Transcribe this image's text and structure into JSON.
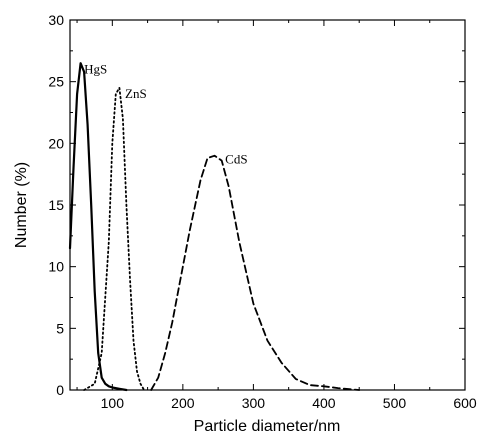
{
  "chart_data": {
    "type": "line",
    "title": "",
    "xlabel": "Particle diameter/nm",
    "ylabel": "Number (%)",
    "xlim": [
      40,
      600
    ],
    "ylim": [
      0,
      30
    ],
    "xticks": [
      100,
      200,
      300,
      400,
      500,
      600
    ],
    "yticks": [
      0,
      5,
      10,
      15,
      20,
      25,
      30
    ],
    "grid": false,
    "legend": "none",
    "series": [
      {
        "name": "HgS",
        "style": "solid",
        "points": [
          [
            40,
            11.5
          ],
          [
            45,
            18
          ],
          [
            50,
            24
          ],
          [
            55,
            26.5
          ],
          [
            60,
            25.8
          ],
          [
            65,
            21.5
          ],
          [
            70,
            15
          ],
          [
            75,
            8
          ],
          [
            80,
            3
          ],
          [
            85,
            1
          ],
          [
            90,
            0.5
          ],
          [
            95,
            0.3
          ],
          [
            100,
            0.2
          ],
          [
            110,
            0.1
          ],
          [
            120,
            0
          ]
        ]
      },
      {
        "name": "ZnS",
        "style": "dotted",
        "points": [
          [
            60,
            0
          ],
          [
            75,
            0.5
          ],
          [
            85,
            3
          ],
          [
            95,
            12
          ],
          [
            100,
            20
          ],
          [
            105,
            24
          ],
          [
            110,
            24.5
          ],
          [
            115,
            22
          ],
          [
            120,
            15
          ],
          [
            125,
            9
          ],
          [
            130,
            4
          ],
          [
            135,
            1.5
          ],
          [
            140,
            0.5
          ],
          [
            145,
            0
          ]
        ]
      },
      {
        "name": "CdS",
        "style": "dashed",
        "points": [
          [
            155,
            0
          ],
          [
            165,
            1
          ],
          [
            175,
            3
          ],
          [
            185,
            5.5
          ],
          [
            195,
            8.5
          ],
          [
            210,
            13
          ],
          [
            225,
            17
          ],
          [
            235,
            18.8
          ],
          [
            245,
            19
          ],
          [
            255,
            18.6
          ],
          [
            265,
            16.5
          ],
          [
            280,
            12
          ],
          [
            300,
            7
          ],
          [
            320,
            4
          ],
          [
            340,
            2.2
          ],
          [
            360,
            0.9
          ],
          [
            380,
            0.4
          ],
          [
            400,
            0.3
          ],
          [
            420,
            0.15
          ],
          [
            440,
            0.05
          ],
          [
            450,
            0
          ]
        ]
      }
    ],
    "annotations": [
      {
        "text": "HgS",
        "x": 60,
        "y": 26
      },
      {
        "text": "ZnS",
        "x": 118,
        "y": 24
      },
      {
        "text": "CdS",
        "x": 260,
        "y": 18.7
      }
    ]
  }
}
